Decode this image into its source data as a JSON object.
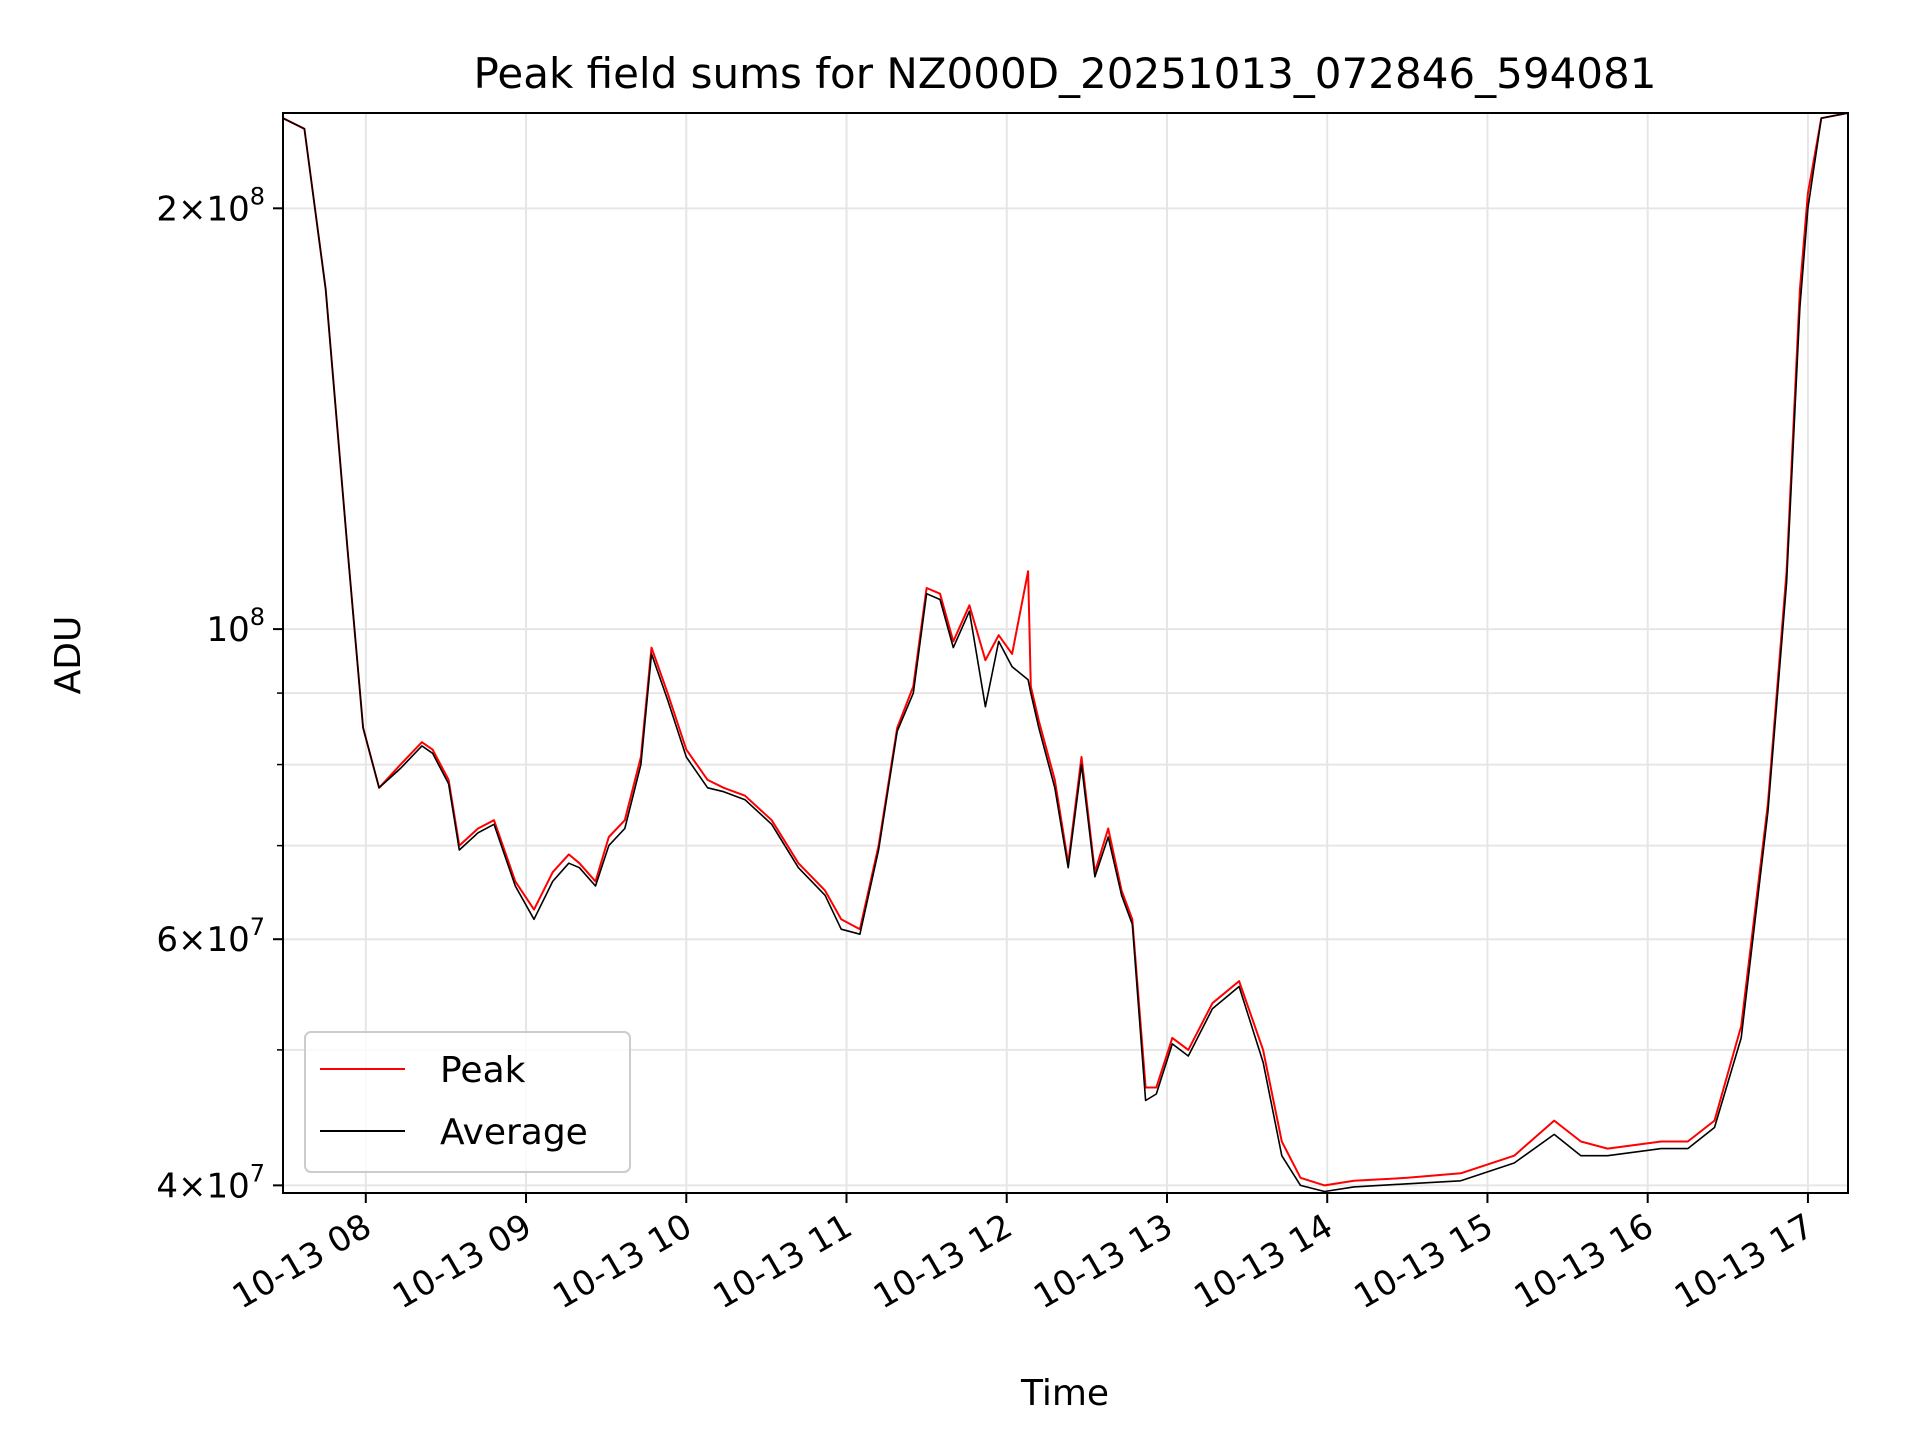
{
  "chart_data": {
    "type": "line",
    "title": "Peak field sums for NZ000D_20251013_072846_594081",
    "xlabel": "Time",
    "ylabel": "ADU",
    "yscale": "log",
    "xlim": [
      "2025-10-13 07:29",
      "2025-10-13 17:15"
    ],
    "ylim": [
      39500000,
      234000000
    ],
    "grid": true,
    "legend": "lower-left",
    "x_ticks": [
      "10-13 08",
      "10-13 09",
      "10-13 10",
      "10-13 11",
      "10-13 12",
      "10-13 13",
      "10-13 14",
      "10-13 15",
      "10-13 16",
      "10-13 17"
    ],
    "y_ticks": [
      {
        "value": 40000000,
        "mant": "4",
        "exp": "7"
      },
      {
        "value": 60000000,
        "mant": "6",
        "exp": "7"
      },
      {
        "value": 100000000,
        "mant": "",
        "exp": "8"
      },
      {
        "value": 200000000,
        "mant": "2",
        "exp": "8"
      }
    ],
    "x_tick_times": [
      "2025-10-13 08:00",
      "2025-10-13 09:00",
      "2025-10-13 10:00",
      "2025-10-13 11:00",
      "2025-10-13 12:00",
      "2025-10-13 13:00",
      "2025-10-13 14:00",
      "2025-10-13 15:00",
      "2025-10-13 16:00",
      "2025-10-13 17:00"
    ],
    "colors": {
      "peak": "#ff0000",
      "average": "#000000",
      "grid": "#e6e6e6"
    },
    "series": [
      {
        "name": "Peak",
        "x": [
          "2025-10-13 07:29",
          "2025-10-13 07:37",
          "2025-10-13 07:45",
          "2025-10-13 07:53",
          "2025-10-13 07:59",
          "2025-10-13 08:05",
          "2025-10-13 08:13",
          "2025-10-13 08:21",
          "2025-10-13 08:25",
          "2025-10-13 08:31",
          "2025-10-13 08:35",
          "2025-10-13 08:42",
          "2025-10-13 08:48",
          "2025-10-13 08:56",
          "2025-10-13 09:03",
          "2025-10-13 09:10",
          "2025-10-13 09:16",
          "2025-10-13 09:20",
          "2025-10-13 09:26",
          "2025-10-13 09:31",
          "2025-10-13 09:37",
          "2025-10-13 09:43",
          "2025-10-13 09:47",
          "2025-10-13 09:53",
          "2025-10-13 10:00",
          "2025-10-13 10:08",
          "2025-10-13 10:14",
          "2025-10-13 10:22",
          "2025-10-13 10:32",
          "2025-10-13 10:42",
          "2025-10-13 10:52",
          "2025-10-13 10:58",
          "2025-10-13 11:05",
          "2025-10-13 11:12",
          "2025-10-13 11:19",
          "2025-10-13 11:25",
          "2025-10-13 11:30",
          "2025-10-13 11:35",
          "2025-10-13 11:40",
          "2025-10-13 11:46",
          "2025-10-13 11:52",
          "2025-10-13 11:57",
          "2025-10-13 12:02",
          "2025-10-13 12:08",
          "2025-10-13 12:09",
          "2025-10-13 12:12",
          "2025-10-13 12:18",
          "2025-10-13 12:23",
          "2025-10-13 12:28",
          "2025-10-13 12:33",
          "2025-10-13 12:38",
          "2025-10-13 12:43",
          "2025-10-13 12:47",
          "2025-10-13 12:52",
          "2025-10-13 12:56",
          "2025-10-13 13:02",
          "2025-10-13 13:08",
          "2025-10-13 13:17",
          "2025-10-13 13:27",
          "2025-10-13 13:36",
          "2025-10-13 13:43",
          "2025-10-13 13:50",
          "2025-10-13 13:59",
          "2025-10-13 14:10",
          "2025-10-13 14:30",
          "2025-10-13 14:50",
          "2025-10-13 15:10",
          "2025-10-13 15:25",
          "2025-10-13 15:35",
          "2025-10-13 15:45",
          "2025-10-13 16:05",
          "2025-10-13 16:15",
          "2025-10-13 16:25",
          "2025-10-13 16:35",
          "2025-10-13 16:45",
          "2025-10-13 16:52",
          "2025-10-13 16:57",
          "2025-10-13 17:00",
          "2025-10-13 17:05",
          "2025-10-13 17:15"
        ],
        "values": [
          232000000,
          228000000,
          175000000,
          115000000,
          85000000,
          77000000,
          80000000,
          83000000,
          82000000,
          78000000,
          70000000,
          72000000,
          73000000,
          66000000,
          63000000,
          67000000,
          69000000,
          68000000,
          66000000,
          71000000,
          73000000,
          81000000,
          97000000,
          90000000,
          82000000,
          78000000,
          77000000,
          76000000,
          73000000,
          68000000,
          65000000,
          62000000,
          61000000,
          70000000,
          85000000,
          91000000,
          107000000,
          106000000,
          98000000,
          104000000,
          95000000,
          99000000,
          96000000,
          110000000,
          91000000,
          86000000,
          78000000,
          68000000,
          81000000,
          67000000,
          72000000,
          65000000,
          62000000,
          47000000,
          47000000,
          51000000,
          50000000,
          54000000,
          56000000,
          50000000,
          43000000,
          40500000,
          40000000,
          40300000,
          40500000,
          40800000,
          42000000,
          44500000,
          43000000,
          42500000,
          43000000,
          43000000,
          44500000,
          52000000,
          75000000,
          110000000,
          175000000,
          205000000,
          232000000,
          234000000
        ]
      },
      {
        "name": "Average",
        "x": [
          "2025-10-13 07:29",
          "2025-10-13 07:37",
          "2025-10-13 07:45",
          "2025-10-13 07:53",
          "2025-10-13 07:59",
          "2025-10-13 08:05",
          "2025-10-13 08:13",
          "2025-10-13 08:21",
          "2025-10-13 08:25",
          "2025-10-13 08:31",
          "2025-10-13 08:35",
          "2025-10-13 08:42",
          "2025-10-13 08:48",
          "2025-10-13 08:56",
          "2025-10-13 09:03",
          "2025-10-13 09:10",
          "2025-10-13 09:16",
          "2025-10-13 09:20",
          "2025-10-13 09:26",
          "2025-10-13 09:31",
          "2025-10-13 09:37",
          "2025-10-13 09:43",
          "2025-10-13 09:47",
          "2025-10-13 09:53",
          "2025-10-13 10:00",
          "2025-10-13 10:08",
          "2025-10-13 10:14",
          "2025-10-13 10:22",
          "2025-10-13 10:32",
          "2025-10-13 10:42",
          "2025-10-13 10:52",
          "2025-10-13 10:58",
          "2025-10-13 11:05",
          "2025-10-13 11:12",
          "2025-10-13 11:19",
          "2025-10-13 11:25",
          "2025-10-13 11:30",
          "2025-10-13 11:35",
          "2025-10-13 11:40",
          "2025-10-13 11:46",
          "2025-10-13 11:52",
          "2025-10-13 11:57",
          "2025-10-13 12:02",
          "2025-10-13 12:08",
          "2025-10-13 12:09",
          "2025-10-13 12:12",
          "2025-10-13 12:18",
          "2025-10-13 12:23",
          "2025-10-13 12:28",
          "2025-10-13 12:33",
          "2025-10-13 12:38",
          "2025-10-13 12:43",
          "2025-10-13 12:47",
          "2025-10-13 12:52",
          "2025-10-13 12:56",
          "2025-10-13 13:02",
          "2025-10-13 13:08",
          "2025-10-13 13:17",
          "2025-10-13 13:27",
          "2025-10-13 13:36",
          "2025-10-13 13:43",
          "2025-10-13 13:50",
          "2025-10-13 13:59",
          "2025-10-13 14:10",
          "2025-10-13 14:30",
          "2025-10-13 14:50",
          "2025-10-13 15:10",
          "2025-10-13 15:25",
          "2025-10-13 15:35",
          "2025-10-13 15:45",
          "2025-10-13 16:05",
          "2025-10-13 16:15",
          "2025-10-13 16:25",
          "2025-10-13 16:35",
          "2025-10-13 16:45",
          "2025-10-13 16:52",
          "2025-10-13 16:57",
          "2025-10-13 17:00",
          "2025-10-13 17:05",
          "2025-10-13 17:15"
        ],
        "values": [
          232000000,
          228000000,
          175000000,
          115000000,
          85000000,
          77000000,
          79500000,
          82500000,
          81500000,
          77500000,
          69500000,
          71500000,
          72500000,
          65500000,
          62000000,
          66000000,
          68000000,
          67500000,
          65500000,
          70000000,
          72000000,
          80000000,
          96000000,
          89000000,
          81000000,
          77000000,
          76500000,
          75500000,
          72500000,
          67500000,
          64500000,
          61000000,
          60500000,
          69500000,
          84500000,
          90000000,
          106000000,
          105000000,
          97000000,
          103000000,
          88000000,
          98000000,
          94000000,
          92000000,
          90000000,
          85000000,
          77000000,
          67500000,
          80000000,
          66500000,
          71000000,
          64500000,
          61500000,
          46000000,
          46500000,
          50500000,
          49500000,
          53500000,
          55500000,
          49000000,
          42000000,
          40000000,
          39600000,
          39900000,
          40100000,
          40300000,
          41500000,
          43500000,
          42000000,
          42000000,
          42500000,
          42500000,
          44000000,
          51000000,
          74000000,
          108000000,
          170000000,
          200000000,
          232000000,
          234000000
        ]
      }
    ]
  }
}
